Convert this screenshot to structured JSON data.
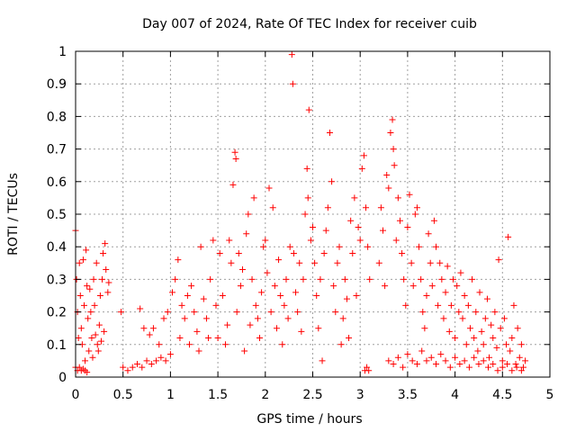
{
  "chart_data": {
    "type": "scatter",
    "title": "Day 007 of 2024, Rate Of TEC Index for receiver cuib",
    "xlabel": "GPS time / hours",
    "ylabel": "ROTI / TECUs",
    "xlim": [
      0,
      5
    ],
    "ylim": [
      0,
      1
    ],
    "x_ticks": [
      0,
      0.5,
      1,
      1.5,
      2,
      2.5,
      3,
      3.5,
      4,
      4.5,
      5
    ],
    "x_tick_labels": [
      "0",
      "0.5",
      "1",
      "1.5",
      "2",
      "2.5",
      "3",
      "3.5",
      "4",
      "4.5",
      "5"
    ],
    "y_ticks": [
      0,
      0.1,
      0.2,
      0.3,
      0.4,
      0.5,
      0.6,
      0.7,
      0.8,
      0.9,
      1
    ],
    "y_tick_labels": [
      "0",
      "0.1",
      "0.2",
      "0.3",
      "0.4",
      "0.5",
      "0.6",
      "0.7",
      "0.8",
      "0.9",
      "1"
    ],
    "grid": true,
    "marker": "+",
    "color": "#ff0000",
    "series": [
      {
        "name": "ROTI",
        "points": [
          [
            0.0,
            0.45
          ],
          [
            0.01,
            0.3
          ],
          [
            0.02,
            0.2
          ],
          [
            0.03,
            0.12
          ],
          [
            0.04,
            0.35
          ],
          [
            0.05,
            0.25
          ],
          [
            0.06,
            0.15
          ],
          [
            0.07,
            0.1
          ],
          [
            0.08,
            0.36
          ],
          [
            0.09,
            0.22
          ],
          [
            0.1,
            0.05
          ],
          [
            0.11,
            0.39
          ],
          [
            0.12,
            0.28
          ],
          [
            0.13,
            0.18
          ],
          [
            0.14,
            0.08
          ],
          [
            0.15,
            0.27
          ],
          [
            0.16,
            0.2
          ],
          [
            0.17,
            0.12
          ],
          [
            0.18,
            0.06
          ],
          [
            0.19,
            0.3
          ],
          [
            0.2,
            0.22
          ],
          [
            0.21,
            0.13
          ],
          [
            0.22,
            0.35
          ],
          [
            0.23,
            0.1
          ],
          [
            0.24,
            0.08
          ],
          [
            0.25,
            0.16
          ],
          [
            0.26,
            0.25
          ],
          [
            0.27,
            0.11
          ],
          [
            0.28,
            0.3
          ],
          [
            0.29,
            0.38
          ],
          [
            0.3,
            0.14
          ],
          [
            0.31,
            0.41
          ],
          [
            0.32,
            0.33
          ],
          [
            0.34,
            0.26
          ],
          [
            0.35,
            0.29
          ],
          [
            0.0,
            0.03
          ],
          [
            0.02,
            0.02
          ],
          [
            0.04,
            0.03
          ],
          [
            0.06,
            0.02
          ],
          [
            0.08,
            0.025
          ],
          [
            0.1,
            0.02
          ],
          [
            0.12,
            0.015
          ],
          [
            0.5,
            0.03
          ],
          [
            0.55,
            0.02
          ],
          [
            0.6,
            0.03
          ],
          [
            0.65,
            0.04
          ],
          [
            0.7,
            0.03
          ],
          [
            0.75,
            0.05
          ],
          [
            0.8,
            0.04
          ],
          [
            0.85,
            0.05
          ],
          [
            0.9,
            0.06
          ],
          [
            0.95,
            0.05
          ],
          [
            1.0,
            0.07
          ],
          [
            0.48,
            0.2
          ],
          [
            0.68,
            0.21
          ],
          [
            0.72,
            0.15
          ],
          [
            0.78,
            0.13
          ],
          [
            0.82,
            0.15
          ],
          [
            0.88,
            0.1
          ],
          [
            0.93,
            0.18
          ],
          [
            0.97,
            0.2
          ],
          [
            1.02,
            0.26
          ],
          [
            1.05,
            0.3
          ],
          [
            1.08,
            0.36
          ],
          [
            1.1,
            0.12
          ],
          [
            1.12,
            0.22
          ],
          [
            1.15,
            0.18
          ],
          [
            1.18,
            0.25
          ],
          [
            1.2,
            0.1
          ],
          [
            1.22,
            0.28
          ],
          [
            1.25,
            0.2
          ],
          [
            1.28,
            0.14
          ],
          [
            1.3,
            0.08
          ],
          [
            1.32,
            0.4
          ],
          [
            1.35,
            0.24
          ],
          [
            1.38,
            0.18
          ],
          [
            1.4,
            0.12
          ],
          [
            1.42,
            0.3
          ],
          [
            1.45,
            0.42
          ],
          [
            1.48,
            0.22
          ],
          [
            1.5,
            0.12
          ],
          [
            1.52,
            0.38
          ],
          [
            1.55,
            0.25
          ],
          [
            1.58,
            0.1
          ],
          [
            1.6,
            0.16
          ],
          [
            1.62,
            0.42
          ],
          [
            1.64,
            0.35
          ],
          [
            1.66,
            0.59
          ],
          [
            1.68,
            0.69
          ],
          [
            1.69,
            0.67
          ],
          [
            1.7,
            0.2
          ],
          [
            1.72,
            0.38
          ],
          [
            1.74,
            0.28
          ],
          [
            1.76,
            0.33
          ],
          [
            1.78,
            0.08
          ],
          [
            1.8,
            0.44
          ],
          [
            1.82,
            0.5
          ],
          [
            1.84,
            0.16
          ],
          [
            1.86,
            0.3
          ],
          [
            1.88,
            0.55
          ],
          [
            1.9,
            0.22
          ],
          [
            1.92,
            0.18
          ],
          [
            1.94,
            0.12
          ],
          [
            1.96,
            0.26
          ],
          [
            1.98,
            0.4
          ],
          [
            2.0,
            0.42
          ],
          [
            2.02,
            0.32
          ],
          [
            2.04,
            0.58
          ],
          [
            2.06,
            0.2
          ],
          [
            2.08,
            0.52
          ],
          [
            2.1,
            0.28
          ],
          [
            2.12,
            0.15
          ],
          [
            2.14,
            0.36
          ],
          [
            2.16,
            0.25
          ],
          [
            2.18,
            0.1
          ],
          [
            2.2,
            0.22
          ],
          [
            2.22,
            0.3
          ],
          [
            2.24,
            0.18
          ],
          [
            2.26,
            0.4
          ],
          [
            2.28,
            0.99
          ],
          [
            2.29,
            0.9
          ],
          [
            2.3,
            0.38
          ],
          [
            2.32,
            0.26
          ],
          [
            2.34,
            0.2
          ],
          [
            2.36,
            0.35
          ],
          [
            2.38,
            0.14
          ],
          [
            2.4,
            0.3
          ],
          [
            2.42,
            0.5
          ],
          [
            2.44,
            0.64
          ],
          [
            2.45,
            0.55
          ],
          [
            2.46,
            0.82
          ],
          [
            2.48,
            0.42
          ],
          [
            2.5,
            0.46
          ],
          [
            2.52,
            0.35
          ],
          [
            2.54,
            0.25
          ],
          [
            2.56,
            0.15
          ],
          [
            2.58,
            0.3
          ],
          [
            2.6,
            0.05
          ],
          [
            2.62,
            0.38
          ],
          [
            2.64,
            0.45
          ],
          [
            2.66,
            0.52
          ],
          [
            2.68,
            0.75
          ],
          [
            2.7,
            0.6
          ],
          [
            2.72,
            0.28
          ],
          [
            2.74,
            0.2
          ],
          [
            2.76,
            0.35
          ],
          [
            2.78,
            0.4
          ],
          [
            2.8,
            0.1
          ],
          [
            2.82,
            0.18
          ],
          [
            2.84,
            0.3
          ],
          [
            2.86,
            0.24
          ],
          [
            2.88,
            0.12
          ],
          [
            2.9,
            0.48
          ],
          [
            2.92,
            0.38
          ],
          [
            2.94,
            0.55
          ],
          [
            2.96,
            0.25
          ],
          [
            2.98,
            0.46
          ],
          [
            3.0,
            0.42
          ],
          [
            3.02,
            0.64
          ],
          [
            3.04,
            0.68
          ],
          [
            3.06,
            0.52
          ],
          [
            3.08,
            0.4
          ],
          [
            3.1,
            0.3
          ],
          [
            3.05,
            0.02
          ],
          [
            3.07,
            0.03
          ],
          [
            3.09,
            0.02
          ],
          [
            3.2,
            0.35
          ],
          [
            3.22,
            0.52
          ],
          [
            3.24,
            0.45
          ],
          [
            3.26,
            0.28
          ],
          [
            3.28,
            0.62
          ],
          [
            3.3,
            0.58
          ],
          [
            3.32,
            0.75
          ],
          [
            3.34,
            0.79
          ],
          [
            3.35,
            0.7
          ],
          [
            3.36,
            0.65
          ],
          [
            3.38,
            0.42
          ],
          [
            3.4,
            0.55
          ],
          [
            3.42,
            0.48
          ],
          [
            3.44,
            0.38
          ],
          [
            3.46,
            0.3
          ],
          [
            3.48,
            0.22
          ],
          [
            3.5,
            0.46
          ],
          [
            3.52,
            0.56
          ],
          [
            3.54,
            0.35
          ],
          [
            3.56,
            0.28
          ],
          [
            3.58,
            0.5
          ],
          [
            3.6,
            0.52
          ],
          [
            3.62,
            0.4
          ],
          [
            3.64,
            0.3
          ],
          [
            3.66,
            0.2
          ],
          [
            3.68,
            0.15
          ],
          [
            3.7,
            0.25
          ],
          [
            3.72,
            0.44
          ],
          [
            3.74,
            0.35
          ],
          [
            3.76,
            0.28
          ],
          [
            3.78,
            0.48
          ],
          [
            3.8,
            0.4
          ],
          [
            3.82,
            0.22
          ],
          [
            3.84,
            0.35
          ],
          [
            3.86,
            0.3
          ],
          [
            3.88,
            0.18
          ],
          [
            3.9,
            0.26
          ],
          [
            3.92,
            0.34
          ],
          [
            3.94,
            0.14
          ],
          [
            3.96,
            0.22
          ],
          [
            3.98,
            0.3
          ],
          [
            4.0,
            0.12
          ],
          [
            4.02,
            0.28
          ],
          [
            4.04,
            0.2
          ],
          [
            4.06,
            0.32
          ],
          [
            4.08,
            0.18
          ],
          [
            4.1,
            0.25
          ],
          [
            4.12,
            0.1
          ],
          [
            4.14,
            0.22
          ],
          [
            4.16,
            0.15
          ],
          [
            4.18,
            0.3
          ],
          [
            4.2,
            0.12
          ],
          [
            4.22,
            0.2
          ],
          [
            4.24,
            0.08
          ],
          [
            4.26,
            0.26
          ],
          [
            4.28,
            0.14
          ],
          [
            4.3,
            0.1
          ],
          [
            4.32,
            0.18
          ],
          [
            4.34,
            0.24
          ],
          [
            4.36,
            0.06
          ],
          [
            4.38,
            0.16
          ],
          [
            4.4,
            0.12
          ],
          [
            4.42,
            0.2
          ],
          [
            4.44,
            0.09
          ],
          [
            4.46,
            0.36
          ],
          [
            4.48,
            0.15
          ],
          [
            4.5,
            0.05
          ],
          [
            4.52,
            0.18
          ],
          [
            4.54,
            0.1
          ],
          [
            4.56,
            0.43
          ],
          [
            4.58,
            0.08
          ],
          [
            4.6,
            0.12
          ],
          [
            4.62,
            0.22
          ],
          [
            4.64,
            0.04
          ],
          [
            4.66,
            0.15
          ],
          [
            4.68,
            0.06
          ],
          [
            4.7,
            0.1
          ],
          [
            4.72,
            0.03
          ],
          [
            4.74,
            0.05
          ],
          [
            3.3,
            0.05
          ],
          [
            3.35,
            0.04
          ],
          [
            3.4,
            0.06
          ],
          [
            3.45,
            0.03
          ],
          [
            3.5,
            0.07
          ],
          [
            3.55,
            0.05
          ],
          [
            3.6,
            0.04
          ],
          [
            3.65,
            0.08
          ],
          [
            3.7,
            0.05
          ],
          [
            3.75,
            0.06
          ],
          [
            3.8,
            0.04
          ],
          [
            3.85,
            0.07
          ],
          [
            3.9,
            0.05
          ],
          [
            3.95,
            0.03
          ],
          [
            4.0,
            0.06
          ],
          [
            4.05,
            0.04
          ],
          [
            4.1,
            0.05
          ],
          [
            4.15,
            0.03
          ],
          [
            4.2,
            0.06
          ],
          [
            4.25,
            0.04
          ],
          [
            4.3,
            0.05
          ],
          [
            4.35,
            0.03
          ],
          [
            4.4,
            0.04
          ],
          [
            4.45,
            0.02
          ],
          [
            4.5,
            0.03
          ],
          [
            4.55,
            0.04
          ],
          [
            4.6,
            0.02
          ],
          [
            4.65,
            0.03
          ],
          [
            4.7,
            0.02
          ]
        ]
      }
    ]
  }
}
